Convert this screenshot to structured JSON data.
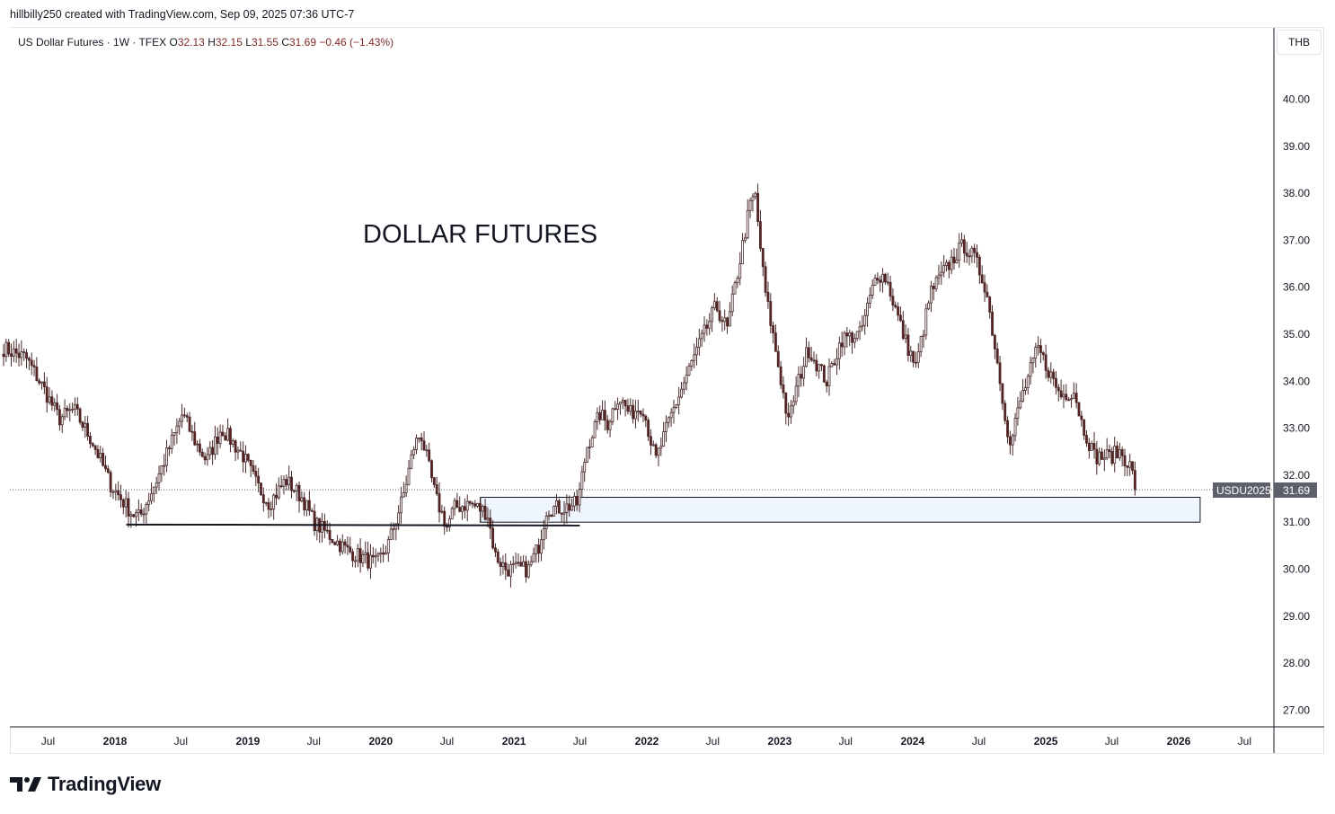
{
  "header": {
    "credit": "hillbilly250 created with TradingView.com, Sep 09, 2025 07:36 UTC-7"
  },
  "legend": {
    "symbol": "US Dollar Futures · 1W · TFEX",
    "open_label": "O",
    "open": "32.13",
    "high_label": "H",
    "high": "32.15",
    "low_label": "L",
    "low": "31.55",
    "close_label": "C",
    "close": "31.69",
    "change": "−0.46 (−1.43%)"
  },
  "currency_button": "THB",
  "brand": {
    "name": "TradingView",
    "icon": "tradingview-logo-icon"
  },
  "colors": {
    "up": "#ffffff",
    "down": "#5d1f1f",
    "wick": "#4a2a2a",
    "zone_fill": "#eef5ff",
    "price_tag": "#5d606b"
  },
  "chart_data": {
    "type": "candlestick",
    "annotation": "DOLLAR FUTURES",
    "price_tag": {
      "label": "USDU2025",
      "value": "31.69"
    },
    "ylim": [
      26.5,
      41.2
    ],
    "y_ticks": [
      "40.00",
      "39.00",
      "38.00",
      "37.00",
      "36.00",
      "35.00",
      "34.00",
      "33.00",
      "32.00",
      "31.00",
      "30.00",
      "29.00",
      "28.00",
      "27.00"
    ],
    "x_ticks": [
      "Jul",
      "2018",
      "Jul",
      "2019",
      "Jul",
      "2020",
      "Jul",
      "2021",
      "Jul",
      "2022",
      "Jul",
      "2023",
      "Jul",
      "2024",
      "Jul",
      "2025",
      "Jul",
      "2026",
      "Jul"
    ],
    "support_line": {
      "from": "2018-02",
      "to": "2021-07",
      "y_start": 30.95,
      "y_end": 30.93
    },
    "zone": {
      "from": "2020-10",
      "to": "2026-03",
      "y_low": 31.0,
      "y_high": 31.53
    },
    "path": [
      [
        "2017-03-01",
        34.7
      ],
      [
        "2017-05-01",
        34.5
      ],
      [
        "2017-06-15",
        33.9
      ],
      [
        "2017-08-01",
        33.2
      ],
      [
        "2017-09-10",
        33.4
      ],
      [
        "2017-11-01",
        32.7
      ],
      [
        "2017-12-20",
        31.8
      ],
      [
        "2018-02-15",
        31.2
      ],
      [
        "2018-03-10",
        31.1
      ],
      [
        "2018-05-01",
        32.0
      ],
      [
        "2018-06-10",
        32.8
      ],
      [
        "2018-07-05",
        33.3
      ],
      [
        "2018-08-10",
        32.7
      ],
      [
        "2018-09-10",
        32.3
      ],
      [
        "2018-10-20",
        33.0
      ],
      [
        "2018-12-20",
        32.4
      ],
      [
        "2019-01-25",
        31.8
      ],
      [
        "2019-03-01",
        31.4
      ],
      [
        "2019-04-15",
        31.9
      ],
      [
        "2019-06-01",
        31.5
      ],
      [
        "2019-07-01",
        31.0
      ],
      [
        "2019-08-01",
        30.8
      ],
      [
        "2019-10-01",
        30.4
      ],
      [
        "2019-12-20",
        30.1
      ],
      [
        "2020-01-20",
        30.5
      ],
      [
        "2020-03-01",
        31.5
      ],
      [
        "2020-04-01",
        32.6
      ],
      [
        "2020-04-20",
        32.9
      ],
      [
        "2020-06-01",
        31.5
      ],
      [
        "2020-07-01",
        30.9
      ],
      [
        "2020-07-20",
        31.3
      ],
      [
        "2020-09-01",
        31.4
      ],
      [
        "2020-10-20",
        31.2
      ],
      [
        "2020-11-10",
        30.3
      ],
      [
        "2020-12-10",
        30.0
      ],
      [
        "2021-02-10",
        30.0
      ],
      [
        "2021-03-10",
        30.5
      ],
      [
        "2021-04-01",
        31.3
      ],
      [
        "2021-05-15",
        31.3
      ],
      [
        "2021-06-25",
        31.4
      ],
      [
        "2021-07-20",
        32.6
      ],
      [
        "2021-08-25",
        33.3
      ],
      [
        "2021-09-15",
        33.1
      ],
      [
        "2021-10-15",
        33.7
      ],
      [
        "2021-11-15",
        33.3
      ],
      [
        "2021-12-20",
        33.5
      ],
      [
        "2022-01-25",
        32.3
      ],
      [
        "2022-03-10",
        33.3
      ],
      [
        "2022-05-10",
        34.5
      ],
      [
        "2022-07-10",
        35.6
      ],
      [
        "2022-08-10",
        35.1
      ],
      [
        "2022-10-10",
        37.7
      ],
      [
        "2022-10-25",
        38.0
      ],
      [
        "2022-11-20",
        36.0
      ],
      [
        "2022-12-20",
        34.7
      ],
      [
        "2023-01-25",
        33.1
      ],
      [
        "2023-02-10",
        33.7
      ],
      [
        "2023-03-20",
        34.7
      ],
      [
        "2023-05-10",
        34.0
      ],
      [
        "2023-06-20",
        34.9
      ],
      [
        "2023-08-10",
        35.0
      ],
      [
        "2023-09-25",
        36.3
      ],
      [
        "2023-10-20",
        36.2
      ],
      [
        "2023-12-10",
        34.9
      ],
      [
        "2024-01-10",
        34.3
      ],
      [
        "2024-02-20",
        35.9
      ],
      [
        "2024-04-20",
        36.6
      ],
      [
        "2024-05-20",
        36.9
      ],
      [
        "2024-06-20",
        36.6
      ],
      [
        "2024-07-20",
        36.0
      ],
      [
        "2024-08-25",
        34.2
      ],
      [
        "2024-09-25",
        32.6
      ],
      [
        "2024-10-20",
        33.5
      ],
      [
        "2024-12-10",
        34.7
      ],
      [
        "2025-01-10",
        34.2
      ],
      [
        "2025-02-10",
        33.7
      ],
      [
        "2025-03-20",
        33.8
      ],
      [
        "2025-04-10",
        33.1
      ],
      [
        "2025-05-15",
        32.4
      ],
      [
        "2025-06-25",
        32.4
      ],
      [
        "2025-07-25",
        32.5
      ],
      [
        "2025-08-20",
        32.2
      ],
      [
        "2025-09-08",
        31.69
      ]
    ]
  }
}
